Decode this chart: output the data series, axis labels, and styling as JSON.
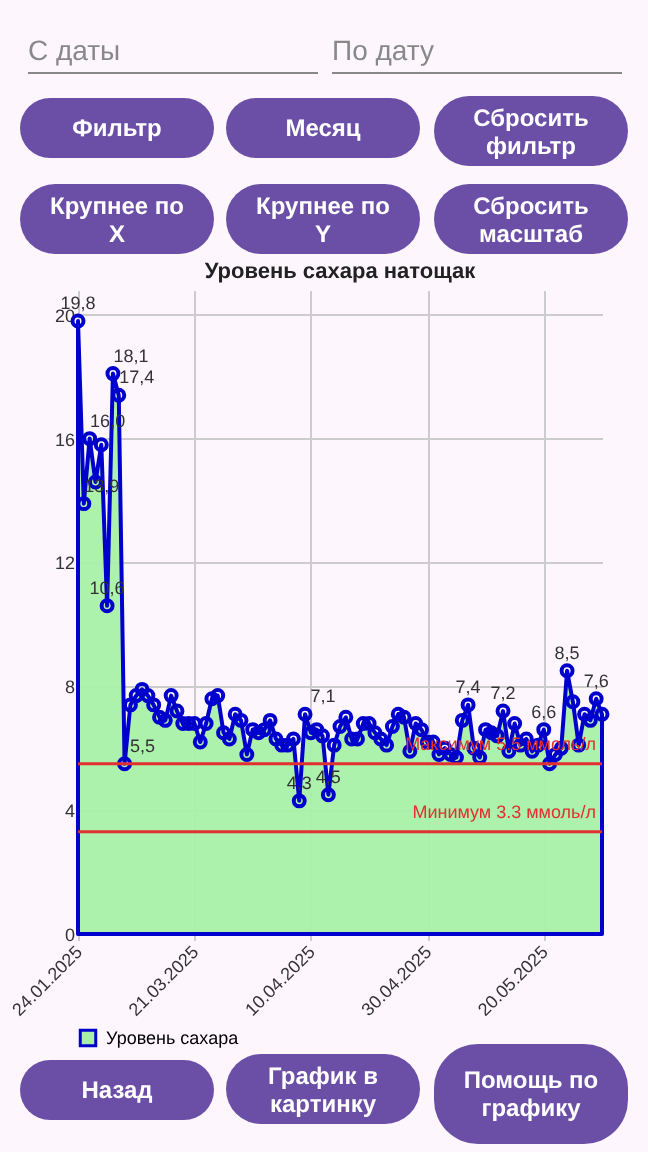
{
  "chart_data": {
    "type": "area",
    "title": "Уровень сахара натощак",
    "categories": [
      "24.01.2025",
      null,
      null,
      null,
      null,
      null,
      null,
      null,
      null,
      null,
      null,
      null,
      null,
      null,
      null,
      null,
      null,
      null,
      null,
      null,
      "21.03.2025",
      null,
      null,
      null,
      null,
      null,
      null,
      null,
      null,
      null,
      null,
      null,
      null,
      null,
      null,
      null,
      null,
      null,
      null,
      null,
      "10.04.2025",
      null,
      null,
      null,
      null,
      null,
      null,
      null,
      null,
      null,
      null,
      null,
      null,
      null,
      null,
      null,
      null,
      null,
      null,
      null,
      "30.04.2025",
      null,
      null,
      null,
      null,
      null,
      null,
      null,
      null,
      null,
      null,
      null,
      null,
      null,
      null,
      null,
      null,
      null,
      null,
      null,
      "20.05.2025",
      null,
      null,
      null,
      null,
      null,
      null,
      null,
      null,
      null,
      null
    ],
    "series": [
      {
        "name": "Уровень сахара",
        "color": "#0000cc",
        "values": [
          19.8,
          13.9,
          16.0,
          14.6,
          15.8,
          10.6,
          18.1,
          17.4,
          5.5,
          7.4,
          7.7,
          7.9,
          7.7,
          7.4,
          7.0,
          6.9,
          7.7,
          7.2,
          6.8,
          6.8,
          6.8,
          6.2,
          6.8,
          7.6,
          7.7,
          6.5,
          6.3,
          7.1,
          6.9,
          5.8,
          6.6,
          6.5,
          6.6,
          6.9,
          6.3,
          6.1,
          6.1,
          6.3,
          4.3,
          7.1,
          6.5,
          6.6,
          6.4,
          4.5,
          6.1,
          6.7,
          7.0,
          6.3,
          6.3,
          6.8,
          6.8,
          6.5,
          6.3,
          6.1,
          6.7,
          7.1,
          7.0,
          5.9,
          6.8,
          6.6,
          6.2,
          6.2,
          5.8,
          6.0,
          5.8,
          5.7,
          6.9,
          7.4,
          6.0,
          5.7,
          6.6,
          6.5,
          6.4,
          7.2,
          5.9,
          6.8,
          6.1,
          6.3,
          5.9,
          6.1,
          6.6,
          5.5,
          5.8,
          6.0,
          8.5,
          7.5,
          6.1,
          7.1,
          6.9,
          7.6,
          7.1
        ],
        "value_labels": [
          "19,8",
          "13,9",
          "16,0",
          null,
          null,
          "10,6",
          "18,1",
          "17,4",
          "5,5",
          null,
          null,
          null,
          null,
          null,
          null,
          null,
          null,
          null,
          null,
          null,
          null,
          null,
          null,
          null,
          null,
          null,
          null,
          null,
          null,
          null,
          null,
          null,
          null,
          null,
          null,
          null,
          null,
          null,
          "4,3",
          "7,1",
          null,
          null,
          null,
          "4,5",
          null,
          null,
          null,
          null,
          null,
          null,
          null,
          null,
          null,
          null,
          null,
          null,
          null,
          null,
          null,
          null,
          null,
          null,
          null,
          null,
          null,
          null,
          null,
          "7,4",
          null,
          null,
          null,
          null,
          null,
          "7,2",
          null,
          null,
          null,
          null,
          null,
          null,
          "6,6",
          null,
          null,
          null,
          "8,5",
          null,
          null,
          null,
          null,
          "7,6",
          null
        ]
      }
    ],
    "ylim": [
      0,
      20.8
    ],
    "yticks": [
      0,
      4,
      8,
      12,
      16,
      20
    ],
    "grid": true,
    "marker": "circle",
    "legend": "bottom",
    "ref_lines": [
      {
        "axis": "y",
        "value": 5.5,
        "label": "Максимум 5.5 ммоль/л",
        "color": "#e03030"
      },
      {
        "axis": "y",
        "value": 3.3,
        "label": "Минимум 3.3 ммоль/л",
        "color": "#e03030"
      }
    ],
    "annotations": [
      "С даты",
      "По дату",
      "Фильтр",
      "Месяц",
      "Сбросить фильтр",
      "Крупнее по X",
      "Крупнее по Y",
      "Сбросить масштаб",
      "Назад",
      "График в картинку",
      "Помощь по графику"
    ]
  }
}
